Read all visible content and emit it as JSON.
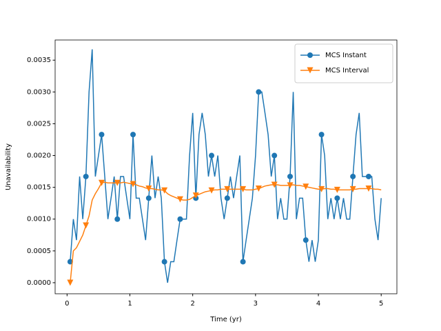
{
  "chart_data": {
    "type": "line",
    "xlabel": "Time (yr)",
    "ylabel": "Unavailability",
    "x": [
      0.05,
      0.1,
      0.15,
      0.2,
      0.25,
      0.3,
      0.35,
      0.4,
      0.45,
      0.5,
      0.55,
      0.6,
      0.65,
      0.7,
      0.75,
      0.8,
      0.85,
      0.9,
      0.95,
      1.0,
      1.05,
      1.1,
      1.15,
      1.2,
      1.25,
      1.3,
      1.35,
      1.4,
      1.45,
      1.5,
      1.55,
      1.6,
      1.65,
      1.7,
      1.75,
      1.8,
      1.85,
      1.9,
      1.95,
      2.0,
      2.05,
      2.1,
      2.15,
      2.2,
      2.25,
      2.3,
      2.35,
      2.4,
      2.45,
      2.5,
      2.55,
      2.6,
      2.65,
      2.7,
      2.75,
      2.8,
      2.85,
      2.9,
      2.95,
      3.0,
      3.05,
      3.1,
      3.15,
      3.2,
      3.25,
      3.3,
      3.35,
      3.4,
      3.45,
      3.5,
      3.55,
      3.6,
      3.65,
      3.7,
      3.75,
      3.8,
      3.85,
      3.9,
      3.95,
      4.0,
      4.05,
      4.1,
      4.15,
      4.2,
      4.25,
      4.3,
      4.35,
      4.4,
      4.45,
      4.5,
      4.55,
      4.6,
      4.65,
      4.7,
      4.75,
      4.8,
      4.85,
      4.9,
      4.95,
      5.0
    ],
    "series": [
      {
        "name": "MCS Instant",
        "color": "#1f77b4",
        "marker": "circle",
        "values": [
          0.00033,
          0.001,
          0.00067,
          0.00167,
          0.001,
          0.00167,
          0.003,
          0.00367,
          0.00167,
          0.002,
          0.00233,
          0.00167,
          0.001,
          0.00133,
          0.00167,
          0.001,
          0.00167,
          0.00167,
          0.00133,
          0.001,
          0.00233,
          0.00133,
          0.00133,
          0.001,
          0.00067,
          0.00133,
          0.002,
          0.00133,
          0.00167,
          0.00133,
          0.00033,
          0,
          0.00033,
          0.00033,
          0.00067,
          0.001,
          0.001,
          0.001,
          0.002,
          0.00267,
          0.00133,
          0.00233,
          0.00267,
          0.00233,
          0.00167,
          0.002,
          0.00167,
          0.002,
          0.00133,
          0.001,
          0.00133,
          0.00167,
          0.00133,
          0.00167,
          0.002,
          0.00033,
          0.00067,
          0.001,
          0.00133,
          0.002,
          0.003,
          0.003,
          0.00267,
          0.00233,
          0.00167,
          0.002,
          0.001,
          0.00133,
          0.001,
          0.001,
          0.00167,
          0.003,
          0.001,
          0.00133,
          0.00133,
          0.00067,
          0.00033,
          0.00067,
          0.00033,
          0.00067,
          0.00233,
          0.002,
          0.001,
          0.00133,
          0.001,
          0.00133,
          0.001,
          0.00133,
          0.001,
          0.001,
          0.00167,
          0.00233,
          0.00267,
          0.00167,
          0.00167,
          0.00167,
          0.00167,
          0.001,
          0.00067,
          0.00133
        ]
      },
      {
        "name": "MCS Interval",
        "color": "#ff7f0e",
        "marker": "triangle-down",
        "values": [
          0,
          0.0005,
          0.00055,
          0.00065,
          0.00075,
          0.0009,
          0.00105,
          0.0013,
          0.0014,
          0.00148,
          0.00157,
          0.00158,
          0.00157,
          0.00157,
          0.00157,
          0.00157,
          0.00157,
          0.00158,
          0.00157,
          0.00156,
          0.00155,
          0.00154,
          0.00152,
          0.00151,
          0.00149,
          0.00148,
          0.00148,
          0.00147,
          0.00146,
          0.00146,
          0.00145,
          0.0014,
          0.00137,
          0.00135,
          0.00133,
          0.00131,
          0.0013,
          0.0013,
          0.00131,
          0.00134,
          0.00137,
          0.00139,
          0.00141,
          0.00143,
          0.00144,
          0.00145,
          0.00146,
          0.00146,
          0.00147,
          0.00147,
          0.00147,
          0.00147,
          0.00147,
          0.00147,
          0.00147,
          0.00147,
          0.00146,
          0.00146,
          0.00146,
          0.00147,
          0.00148,
          0.0015,
          0.00152,
          0.00153,
          0.00154,
          0.00154,
          0.00154,
          0.00153,
          0.00153,
          0.00153,
          0.00153,
          0.00154,
          0.00153,
          0.00153,
          0.00152,
          0.00151,
          0.0015,
          0.00149,
          0.00148,
          0.00147,
          0.00147,
          0.00148,
          0.00148,
          0.00147,
          0.00147,
          0.00146,
          0.00146,
          0.00146,
          0.00146,
          0.00146,
          0.00147,
          0.00147,
          0.00148,
          0.00148,
          0.00148,
          0.00148,
          0.00148,
          0.00147,
          0.00147,
          0.00146
        ]
      }
    ],
    "markevery": 5,
    "xlim": [
      -0.19,
      5.25
    ],
    "ylim": [
      -0.000174,
      0.003817
    ],
    "xticks": [
      0,
      1,
      2,
      3,
      4,
      5
    ],
    "yticks": [
      {
        "value": 0,
        "label": "0.0000"
      },
      {
        "value": 0.0005,
        "label": "0.0005"
      },
      {
        "value": 0.001,
        "label": "0.0010"
      },
      {
        "value": 0.0015,
        "label": "0.0015"
      },
      {
        "value": 0.002,
        "label": "0.0020"
      },
      {
        "value": 0.0025,
        "label": "0.0025"
      },
      {
        "value": 0.003,
        "label": "0.0030"
      },
      {
        "value": 0.0035,
        "label": "0.0035"
      }
    ],
    "legend": "upper right",
    "grid": false
  }
}
